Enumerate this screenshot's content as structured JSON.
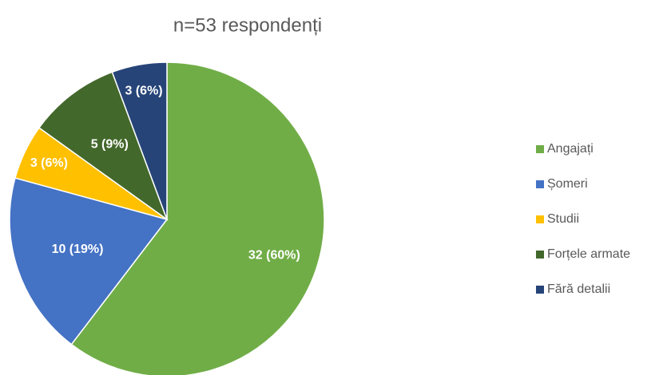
{
  "chart_data": {
    "type": "pie",
    "title": "n=53 respondenți",
    "categories": [
      "Angajați",
      "Șomeri",
      "Studii",
      "Forțele armate",
      "Fără detalii"
    ],
    "values": [
      32,
      10,
      3,
      5,
      3
    ],
    "value_labels": [
      "32 (60%)",
      "10 (19%)",
      "3 (6%)",
      "5 (9%)",
      "3 (6%)"
    ],
    "colors": [
      "#70ad47",
      "#4472c4",
      "#ffc000",
      "#43682b",
      "#264478"
    ],
    "legend": "right"
  }
}
